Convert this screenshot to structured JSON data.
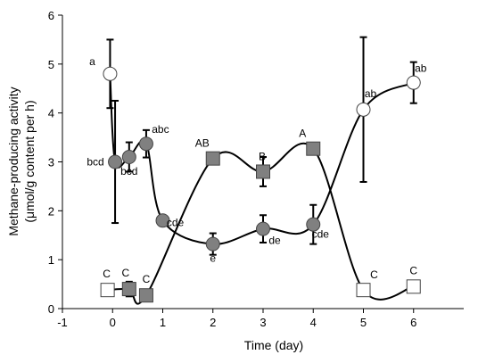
{
  "chart_data": {
    "type": "scatter",
    "title": "",
    "xlabel": "Time (day)",
    "ylabel": "Methane-producing activity",
    "ylabel_line2": "(μmol/g content per h)",
    "xlim": [
      -1,
      7
    ],
    "ylim": [
      0,
      6
    ],
    "x_ticks": [
      -1,
      0,
      1,
      2,
      3,
      4,
      5,
      6
    ],
    "y_ticks": [
      0,
      1,
      2,
      3,
      4,
      5,
      6
    ],
    "grid": false,
    "legend": "none",
    "series": [
      {
        "marker": "circle",
        "x": [
          -0.05,
          0.05,
          0.33,
          0.67,
          1,
          2,
          3,
          4,
          5,
          6
        ],
        "y": [
          4.8,
          3.0,
          3.1,
          3.37,
          1.8,
          1.32,
          1.63,
          1.72,
          4.07,
          4.62
        ],
        "error": [
          0.7,
          1.25,
          0.3,
          0.28,
          0,
          0.22,
          0.28,
          0.4,
          1.48,
          0.42
        ],
        "fill": [
          "#ffffff",
          "#808080",
          "#808080",
          "#808080",
          "#808080",
          "#808080",
          "#808080",
          "#808080",
          "#ffffff",
          "#ffffff"
        ],
        "labels": [
          "a",
          "bcd",
          "bcd",
          "abc",
          "cde",
          "e",
          "de",
          "cde",
          "ab",
          "ab"
        ]
      },
      {
        "marker": "square",
        "x": [
          -0.1,
          0.33,
          0.67,
          2,
          3,
          4,
          5,
          6
        ],
        "y": [
          0.38,
          0.4,
          0.27,
          3.07,
          2.8,
          3.27,
          0.38,
          0.45
        ],
        "error": [
          0,
          0.15,
          0,
          0,
          0.3,
          0,
          0,
          0
        ],
        "fill": [
          "#ffffff",
          "#808080",
          "#808080",
          "#808080",
          "#808080",
          "#808080",
          "#ffffff",
          "#ffffff"
        ],
        "labels": [
          "C",
          "C",
          "C",
          "AB",
          "B",
          "A",
          "C",
          "C"
        ]
      }
    ]
  }
}
